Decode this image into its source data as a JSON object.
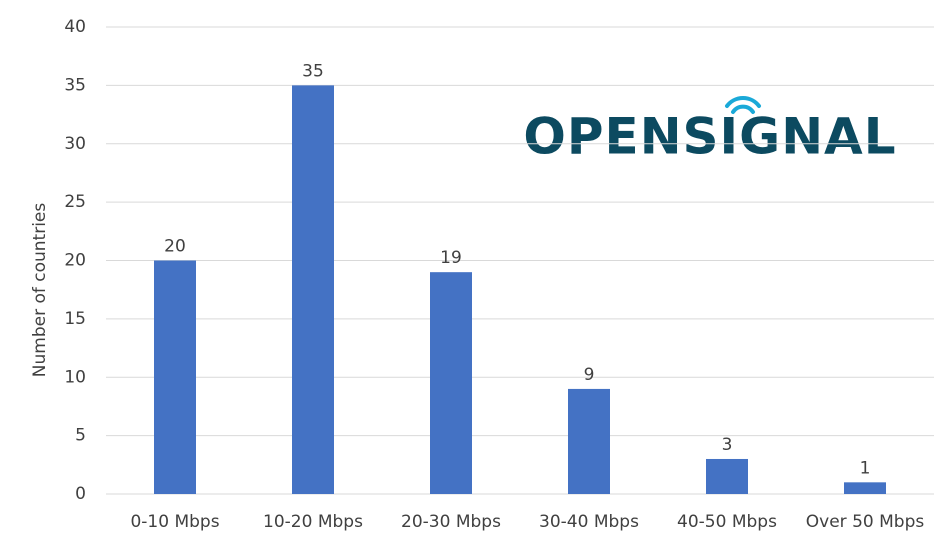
{
  "chart_data": {
    "type": "bar",
    "y_label": "Number of countries",
    "logo": "OPENSIGNAL",
    "categories": [
      "0-10 Mbps",
      "10-20 Mbps",
      "20-30 Mbps",
      "30-40 Mbps",
      "40-50 Mbps",
      "Over 50 Mbps"
    ],
    "values": [
      20,
      35,
      19,
      9,
      3,
      1
    ],
    "color": "#4472c4",
    "ylim": [
      0,
      40
    ],
    "yticks": [
      0,
      5,
      10,
      15,
      20,
      25,
      30,
      35,
      40
    ],
    "grid": true,
    "data_labels": true
  }
}
